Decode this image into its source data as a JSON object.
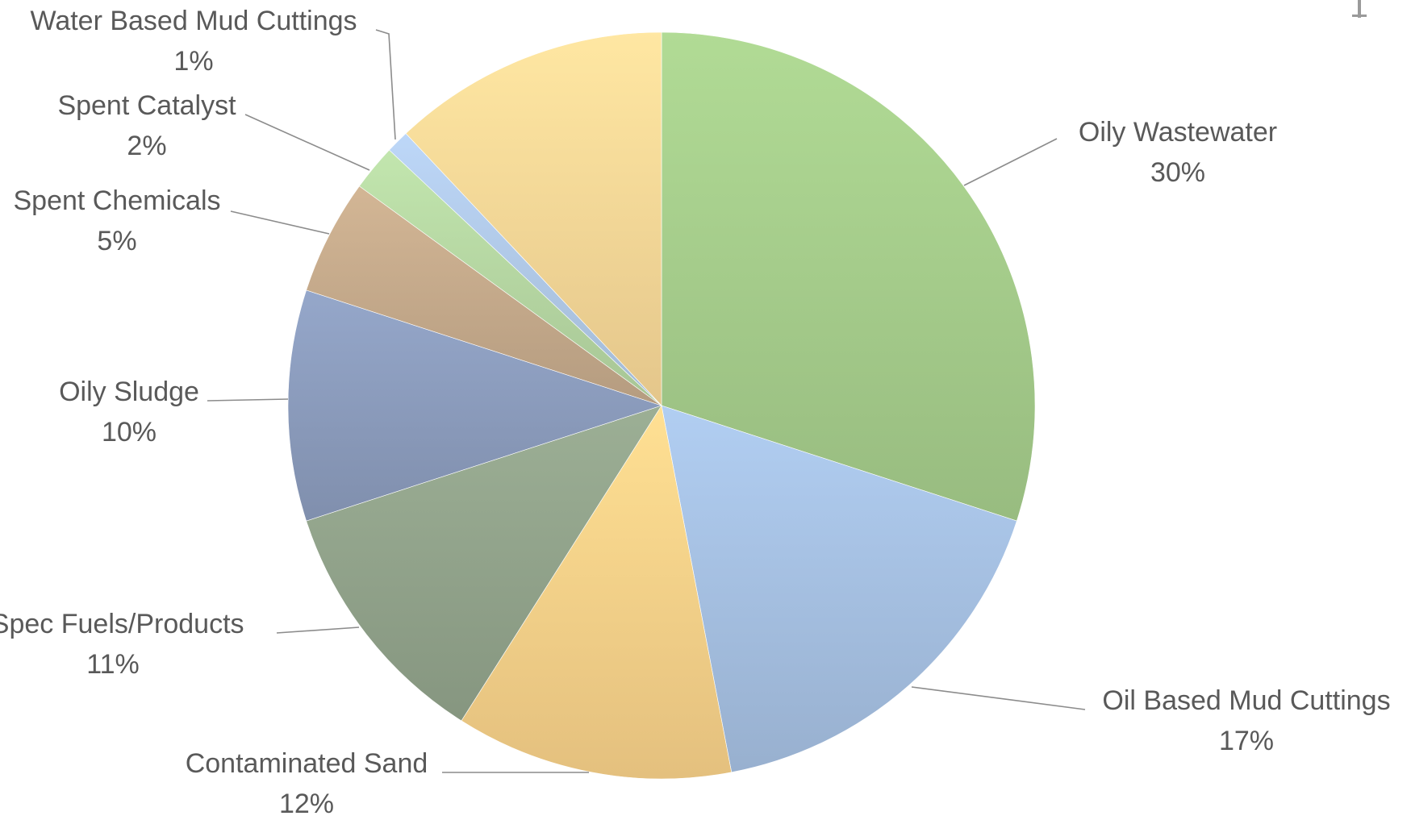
{
  "chart_data": {
    "type": "pie",
    "title": "",
    "slices": [
      {
        "label": "Oily Wastewater",
        "value": 30,
        "display": "30%",
        "color": "#a9d18e"
      },
      {
        "label": "Oil Based Mud Cuttings",
        "value": 17,
        "display": "17%",
        "color": "#a9c4e6"
      },
      {
        "label": "Contaminated Sand",
        "value": 12,
        "display": "12%",
        "color": "#fdd58c"
      },
      {
        "label": "-Spec Fuels/Products",
        "value": 11,
        "display": "11%",
        "color": "#95a78e"
      },
      {
        "label": "Oily Sludge",
        "value": 10,
        "display": "10%",
        "color": "#8e9fc0"
      },
      {
        "label": "Spent Chemicals",
        "value": 5,
        "display": "5%",
        "color": "#c9ad8e"
      },
      {
        "label": "Spent Catalyst",
        "value": 2,
        "display": "2%",
        "color": "#b9dba6"
      },
      {
        "label": "Water Based Mud Cuttings",
        "value": 1,
        "display": "1%",
        "color": "#b4cdec"
      },
      {
        "label": "",
        "value": 12,
        "display": "",
        "color": "#fddc9a"
      }
    ],
    "start_angle": "12 o'clock",
    "direction": "clockwise",
    "legend": "none"
  }
}
